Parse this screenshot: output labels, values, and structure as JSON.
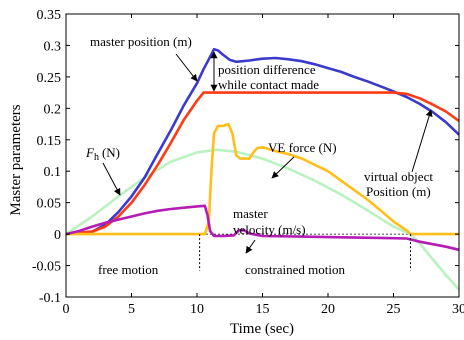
{
  "chart_data": {
    "type": "line",
    "title": "",
    "xlabel": "Time (sec)",
    "ylabel": "Master parameters",
    "xlim": [
      0,
      30
    ],
    "ylim": [
      -0.1,
      0.35
    ],
    "x_ticks": [
      0,
      5,
      10,
      15,
      20,
      25,
      30
    ],
    "y_ticks": [
      -0.1,
      -0.05,
      0,
      0.05,
      0.1,
      0.15,
      0.2,
      0.25,
      0.3,
      0.35
    ],
    "y_tick_labels": [
      "-0.1",
      "-0.05",
      "0",
      "0.05",
      "0.1",
      "0.15",
      "0.2",
      "0.25",
      "0.3",
      "0.35"
    ],
    "grid": false,
    "series": [
      {
        "key": "fh",
        "color": "#b9f2c0",
        "points": [
          [
            0,
            0
          ],
          [
            2,
            0.028
          ],
          [
            4,
            0.06
          ],
          [
            6,
            0.09
          ],
          [
            8,
            0.115
          ],
          [
            10,
            0.13
          ],
          [
            11.5,
            0.134
          ],
          [
            13,
            0.131
          ],
          [
            15,
            0.12
          ],
          [
            17,
            0.104
          ],
          [
            19,
            0.085
          ],
          [
            21,
            0.063
          ],
          [
            23,
            0.038
          ],
          [
            25,
            0.012
          ],
          [
            26.3,
            0
          ],
          [
            27,
            -0.015
          ],
          [
            28,
            -0.04
          ],
          [
            29,
            -0.065
          ],
          [
            30,
            -0.088
          ]
        ]
      },
      {
        "key": "master_position",
        "color": "#3a3acc",
        "points": [
          [
            0,
            0
          ],
          [
            2,
            0.004
          ],
          [
            3,
            0.015
          ],
          [
            4,
            0.035
          ],
          [
            5,
            0.06
          ],
          [
            6,
            0.09
          ],
          [
            7,
            0.128
          ],
          [
            8,
            0.165
          ],
          [
            9,
            0.205
          ],
          [
            10,
            0.24
          ],
          [
            10.5,
            0.262
          ],
          [
            11,
            0.282
          ],
          [
            11.3,
            0.294
          ],
          [
            11.6,
            0.292
          ],
          [
            12,
            0.285
          ],
          [
            12.5,
            0.277
          ],
          [
            13,
            0.274
          ],
          [
            14,
            0.276
          ],
          [
            15,
            0.279
          ],
          [
            16,
            0.28
          ],
          [
            17,
            0.278
          ],
          [
            18,
            0.275
          ],
          [
            19,
            0.27
          ],
          [
            20,
            0.264
          ],
          [
            21,
            0.258
          ],
          [
            22,
            0.25
          ],
          [
            23,
            0.243
          ],
          [
            24,
            0.235
          ],
          [
            25,
            0.227
          ],
          [
            26,
            0.218
          ],
          [
            27,
            0.207
          ],
          [
            28,
            0.194
          ],
          [
            29,
            0.178
          ],
          [
            30,
            0.158
          ]
        ]
      },
      {
        "key": "virtual_object_position",
        "color": "#ff3b14",
        "points": [
          [
            0,
            0
          ],
          [
            2,
            0.004
          ],
          [
            3,
            0.012
          ],
          [
            4,
            0.028
          ],
          [
            5,
            0.05
          ],
          [
            6,
            0.078
          ],
          [
            7,
            0.11
          ],
          [
            8,
            0.145
          ],
          [
            9,
            0.182
          ],
          [
            10,
            0.212
          ],
          [
            10.5,
            0.225
          ],
          [
            11,
            0.225
          ],
          [
            15,
            0.225
          ],
          [
            20,
            0.225
          ],
          [
            25,
            0.225
          ],
          [
            26,
            0.223
          ],
          [
            27,
            0.216
          ],
          [
            28,
            0.206
          ],
          [
            29,
            0.195
          ],
          [
            30,
            0.18
          ]
        ]
      },
      {
        "key": "ve_force",
        "color": "#ffbe1a",
        "points": [
          [
            0,
            0
          ],
          [
            10.6,
            0
          ],
          [
            10.9,
            0.02
          ],
          [
            11.1,
            0.1
          ],
          [
            11.3,
            0.16
          ],
          [
            11.6,
            0.172
          ],
          [
            12,
            0.172
          ],
          [
            12.4,
            0.175
          ],
          [
            12.7,
            0.16
          ],
          [
            13,
            0.125
          ],
          [
            13.3,
            0.12
          ],
          [
            14,
            0.12
          ],
          [
            14.3,
            0.13
          ],
          [
            14.6,
            0.137
          ],
          [
            15,
            0.138
          ],
          [
            16,
            0.132
          ],
          [
            17,
            0.127
          ],
          [
            18,
            0.12
          ],
          [
            19,
            0.11
          ],
          [
            20,
            0.1
          ],
          [
            21,
            0.085
          ],
          [
            22,
            0.07
          ],
          [
            23,
            0.055
          ],
          [
            24,
            0.038
          ],
          [
            25,
            0.02
          ],
          [
            26,
            0.006
          ],
          [
            26.3,
            0
          ],
          [
            30,
            0
          ]
        ]
      },
      {
        "key": "master_velocity",
        "color": "#b51cb5",
        "points": [
          [
            0,
            0
          ],
          [
            1,
            0.005
          ],
          [
            2,
            0.012
          ],
          [
            3,
            0.018
          ],
          [
            4,
            0.023
          ],
          [
            5,
            0.028
          ],
          [
            6,
            0.033
          ],
          [
            7,
            0.037
          ],
          [
            8,
            0.04
          ],
          [
            9,
            0.042
          ],
          [
            10,
            0.044
          ],
          [
            10.6,
            0.045
          ],
          [
            10.8,
            0.03
          ],
          [
            11,
            0.005
          ],
          [
            11.3,
            -0.003
          ],
          [
            12,
            -0.003
          ],
          [
            12.8,
            -0.002
          ],
          [
            13.2,
            0.006
          ],
          [
            13.6,
            0.006
          ],
          [
            14,
            0.001
          ],
          [
            15,
            -0.003
          ],
          [
            18,
            -0.004
          ],
          [
            21,
            -0.005
          ],
          [
            24,
            -0.006
          ],
          [
            26,
            -0.007
          ],
          [
            27,
            -0.012
          ],
          [
            28,
            -0.016
          ],
          [
            29,
            -0.02
          ],
          [
            30,
            -0.025
          ]
        ]
      }
    ],
    "zero_line": {
      "y": 0,
      "color": "#000000",
      "dashed": true
    },
    "event_markers": [
      {
        "x": 10.2,
        "y_from": 0,
        "y_to": -0.058
      },
      {
        "x": 26.3,
        "y_from": 0,
        "y_to": -0.058
      }
    ],
    "annotations": {
      "master_position": "master position (m)",
      "position_difference_line1": "position difference",
      "position_difference_line2": "while contact made",
      "fh_symbol": "F",
      "fh_subscript": "h",
      "fh_unit": "(N)",
      "ve_force": "VE force (N)",
      "master_velocity_line1": "master",
      "master_velocity_line2": "velocity (m/s)",
      "virtual_object_line1": "virtual object",
      "virtual_object_line2": "Position (m)",
      "free_motion": "free motion",
      "constrained_motion": "constrained motion"
    }
  }
}
